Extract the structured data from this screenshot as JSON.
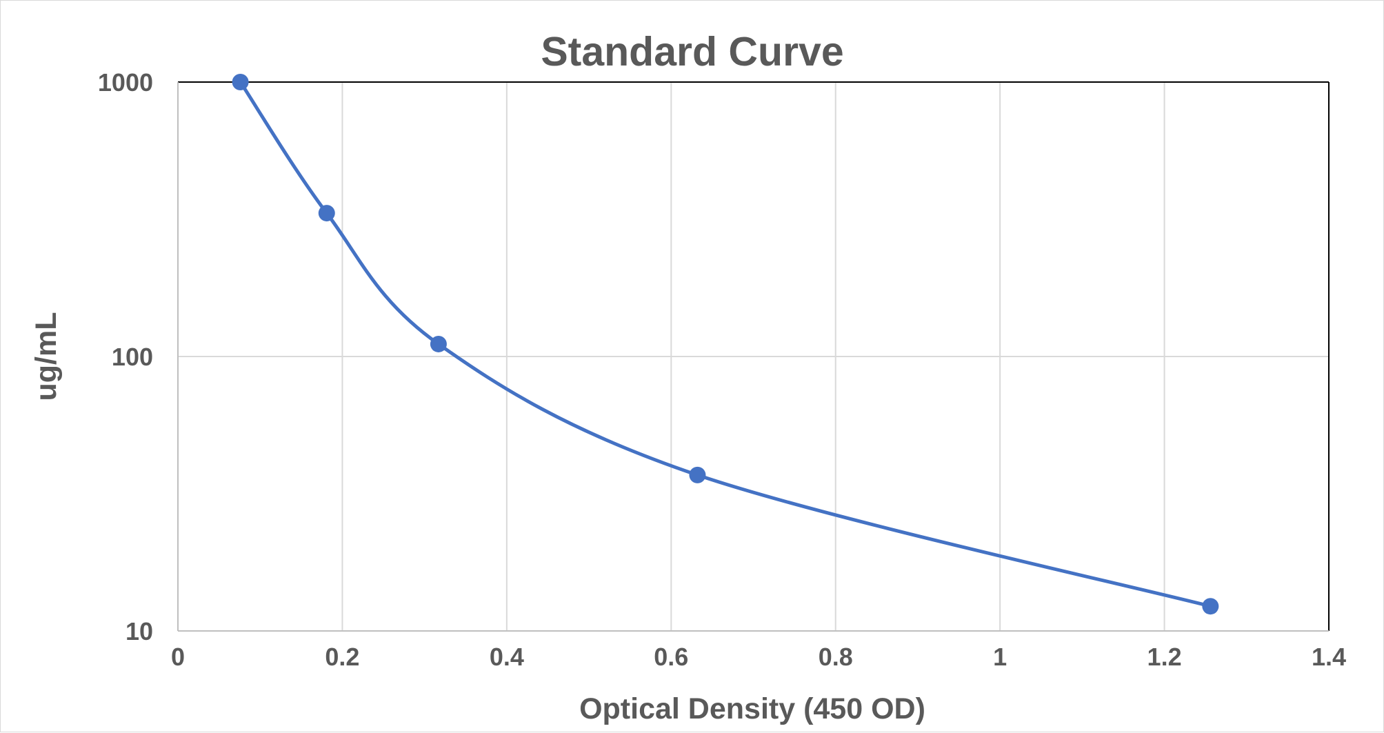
{
  "chart_data": {
    "type": "scatter",
    "title": "Standard Curve",
    "xlabel": "Optical Density (450 OD)",
    "ylabel": "ug/mL",
    "xlim": [
      0,
      1.4
    ],
    "ylim": [
      10,
      1000
    ],
    "yscale": "log",
    "x_ticks": [
      0,
      0.2,
      0.4,
      0.6,
      0.8,
      1,
      1.2,
      1.4
    ],
    "x_tick_labels": [
      "0",
      "0.2",
      "0.4",
      "0.6",
      "0.8",
      "1",
      "1.2",
      "1.4"
    ],
    "y_ticks": [
      10,
      100,
      1000
    ],
    "y_tick_labels": [
      "10",
      "100",
      "1000"
    ],
    "grid": true,
    "legend": "none",
    "line_style": "smoothed",
    "color": "#4472C4",
    "series": [
      {
        "x": [
          0.076,
          0.181,
          0.317,
          0.632,
          1.256
        ],
        "y": [
          1000,
          333,
          111,
          37,
          12.3
        ]
      }
    ]
  }
}
